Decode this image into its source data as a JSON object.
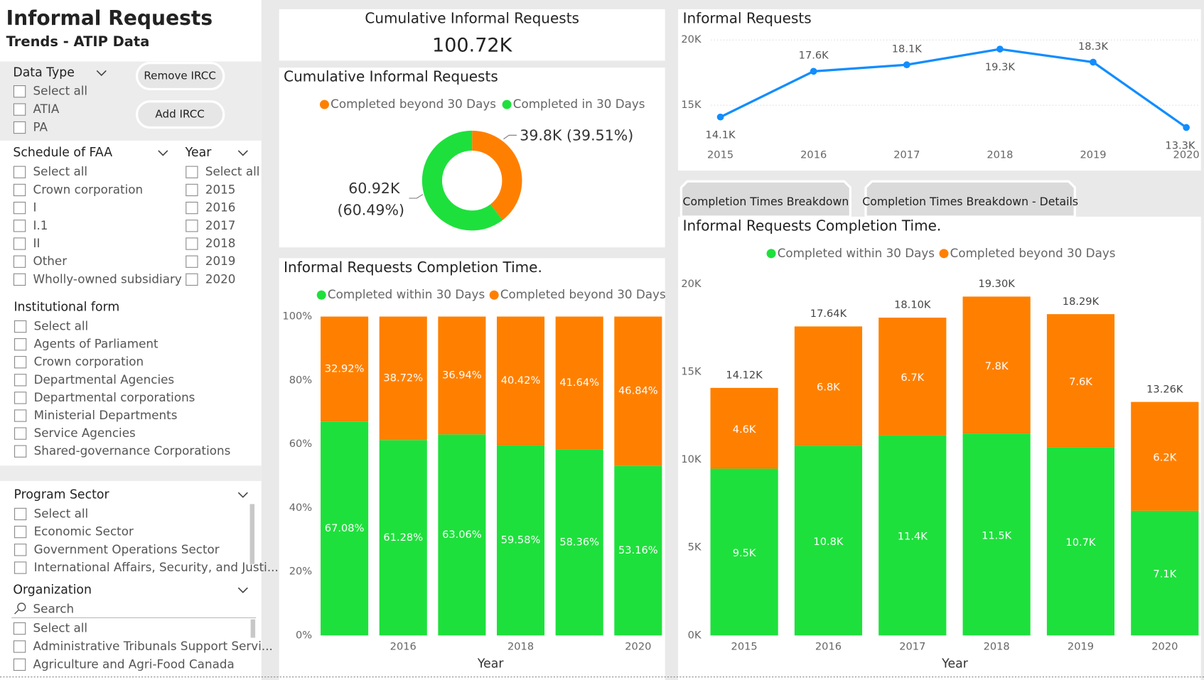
{
  "header": {
    "title": "Informal Requests",
    "subtitle": "Trends - ATIP Data"
  },
  "buttons": [
    "Remove IRCC",
    "Add IRCC"
  ],
  "slicers": [
    {
      "title": "Data Type",
      "items": [
        "Select all",
        "ATIA",
        "PA"
      ]
    },
    {
      "title": "Schedule of FAA",
      "items": [
        "Select all",
        "Crown corporation",
        "I",
        "I.1",
        "II",
        "Other",
        "Wholly-owned subsidiary"
      ]
    },
    {
      "title": "Year",
      "items": [
        "Select all",
        "2015",
        "2016",
        "2017",
        "2018",
        "2019",
        "2020"
      ]
    },
    {
      "title": "Institutional form",
      "items": [
        "Select all",
        "Agents of Parliament",
        "Crown corporation",
        "Departmental Agencies",
        "Departmental corporations",
        "Ministerial Departments",
        "Service Agencies",
        "Shared-governance Corporations"
      ]
    },
    {
      "title": "Program Sector",
      "items": [
        "Select all",
        "Economic Sector",
        "Government Operations Sector",
        "International Affairs, Security, and Justi..."
      ]
    },
    {
      "title": "Organization",
      "search": "Search",
      "items": [
        "Select all",
        "Administrative Tribunals Support Servi...",
        "Agriculture and Agri-Food Canada"
      ]
    }
  ],
  "kpi": {
    "title": "Cumulative Informal Requests",
    "value": "100.72K"
  },
  "tabs": [
    "Completion Times Breakdown",
    "Completion Times Breakdown - Details"
  ],
  "chart_data": [
    {
      "type": "donut",
      "title": "Cumulative Informal Requests",
      "categories": [
        "Completed beyond 30 Days",
        "Completed in 30 Days"
      ],
      "values": [
        39800,
        60920
      ],
      "value_labels": [
        "39.8K (39.51%)",
        "60.92K (60.49%)"
      ],
      "colors": [
        "#ff8000",
        "#1ee03c"
      ]
    },
    {
      "type": "line",
      "title": "Informal Requests",
      "categories": [
        "2015",
        "2016",
        "2017",
        "2018",
        "2019",
        "2020"
      ],
      "values": [
        14100,
        17600,
        18100,
        19300,
        18300,
        13300
      ],
      "value_labels": [
        "14.1K",
        "17.6K",
        "18.1K",
        "19.3K",
        "18.3K",
        "13.3K"
      ],
      "color": "#118dff",
      "ylim": [
        12000,
        20000
      ],
      "yticks": [
        {
          "value": 15000,
          "label": "15K"
        },
        {
          "value": 20000,
          "label": "20K"
        }
      ],
      "grid": true
    },
    {
      "type": "stacked_bar",
      "title": "Informal Requests Completion Time.",
      "categories": [
        null,
        "2016",
        null,
        "2018",
        null,
        "2020"
      ],
      "x_label": "Year",
      "series": [
        {
          "name": "Completed within 30 Days",
          "color": "#1ee03c",
          "values": [
            67.08,
            61.28,
            63.06,
            59.58,
            58.36,
            53.16
          ],
          "value_labels": [
            "67.08%",
            "61.28%",
            "63.06%",
            "59.58%",
            "58.36%",
            "53.16%"
          ]
        },
        {
          "name": "Completed beyond 30 Days",
          "color": "#ff8000",
          "values": [
            32.92,
            38.72,
            36.94,
            40.42,
            41.64,
            46.84
          ],
          "value_labels": [
            "32.92%",
            "38.72%",
            "36.94%",
            "40.42%",
            "41.64%",
            "46.84%"
          ]
        }
      ],
      "ylim": [
        0,
        100
      ],
      "yticks": [
        {
          "value": 0,
          "label": "0%"
        },
        {
          "value": 20,
          "label": "20%"
        },
        {
          "value": 40,
          "label": "40%"
        },
        {
          "value": 60,
          "label": "60%"
        },
        {
          "value": 80,
          "label": "80%"
        },
        {
          "value": 100,
          "label": "100%"
        }
      ]
    },
    {
      "type": "stacked_bar",
      "title": "Informal Requests Completion Time.",
      "categories": [
        "2015",
        "2016",
        "2017",
        "2018",
        "2019",
        "2020"
      ],
      "x_label": "Year",
      "series": [
        {
          "name": "Completed within 30 Days",
          "color": "#1ee03c",
          "values": [
            9500,
            10800,
            11400,
            11500,
            10700,
            7100
          ],
          "value_labels": [
            "9.5K",
            "10.8K",
            "11.4K",
            "11.5K",
            "10.7K",
            "7.1K"
          ]
        },
        {
          "name": "Completed beyond 30 Days",
          "color": "#ff8000",
          "values": [
            4600,
            6800,
            6700,
            7800,
            7600,
            6200
          ],
          "value_labels": [
            "4.6K",
            "6.8K",
            "6.7K",
            "7.8K",
            "7.6K",
            "6.2K"
          ]
        }
      ],
      "total_labels": [
        "14.12K",
        "17.64K",
        "18.10K",
        "19.30K",
        "18.29K",
        "13.26K"
      ],
      "ylim": [
        0,
        20000
      ],
      "yticks": [
        {
          "value": 0,
          "label": "0K"
        },
        {
          "value": 5000,
          "label": "5K"
        },
        {
          "value": 10000,
          "label": "10K"
        },
        {
          "value": 15000,
          "label": "15K"
        },
        {
          "value": 20000,
          "label": "20K"
        }
      ]
    }
  ]
}
